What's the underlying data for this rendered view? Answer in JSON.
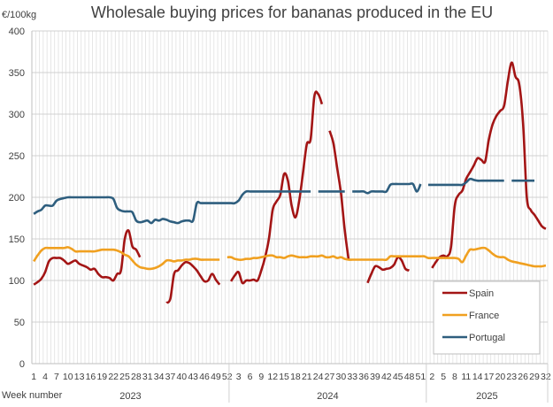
{
  "chart_data": {
    "type": "line",
    "title": "Wholesale buying prices for bananas produced in the EU",
    "ylabel": "€/100kg",
    "xlabel": "Week number",
    "ylim": [
      0,
      400
    ],
    "y_ticks": [
      0,
      50,
      100,
      150,
      200,
      250,
      300,
      350,
      400
    ],
    "grid": true,
    "legend_position": "bottom-right",
    "years": [
      {
        "label": "2023",
        "weeks": 52,
        "tick_labels": [
          1,
          4,
          7,
          10,
          13,
          16,
          19,
          22,
          25,
          28,
          31,
          34,
          37,
          40,
          43,
          46,
          49,
          52
        ]
      },
      {
        "label": "2024",
        "weeks": 52,
        "tick_labels": [
          3,
          6,
          9,
          12,
          15,
          18,
          21,
          24,
          27,
          30,
          33,
          36,
          39,
          42,
          45,
          48,
          51
        ]
      },
      {
        "label": "2025",
        "weeks": 32,
        "tick_labels": [
          2,
          5,
          8,
          11,
          14,
          17,
          20,
          23,
          26,
          29,
          32
        ]
      }
    ],
    "series": [
      {
        "name": "Spain",
        "color": "#A31515",
        "values": [
          95,
          98,
          102,
          110,
          123,
          127,
          127,
          127,
          124,
          120,
          122,
          124,
          120,
          118,
          116,
          113,
          114,
          108,
          104,
          104,
          103,
          100,
          108,
          112,
          150,
          160,
          141,
          137,
          128,
          null,
          null,
          null,
          null,
          null,
          null,
          73,
          78,
          108,
          112,
          118,
          122,
          121,
          117,
          112,
          105,
          99,
          100,
          108,
          101,
          95,
          null,
          null,
          99,
          106,
          110,
          97,
          100,
          100,
          101,
          100,
          112,
          128,
          150,
          185,
          195,
          203,
          228,
          220,
          190,
          176,
          196,
          230,
          264,
          270,
          322,
          324,
          312,
          null,
          280,
          265,
          235,
          205,
          160,
          126,
          null,
          null,
          null,
          null,
          97,
          108,
          117,
          116,
          113,
          114,
          115,
          119,
          128,
          124,
          114,
          112,
          null,
          null,
          null,
          null,
          null,
          115,
          122,
          128,
          130,
          129,
          140,
          190,
          203,
          208,
          222,
          230,
          238,
          247,
          245,
          243,
          270,
          288,
          298,
          304,
          310,
          340,
          362,
          345,
          336,
          290,
          200,
          185,
          179,
          172,
          165,
          162
        ]
      },
      {
        "name": "France",
        "color": "#F0A020",
        "values": [
          123,
          130,
          136,
          139,
          139,
          139,
          139,
          139,
          139,
          140,
          138,
          135,
          135,
          135,
          135,
          135,
          135,
          136,
          137,
          137,
          137,
          137,
          136,
          134,
          131,
          129,
          124,
          119,
          116,
          115,
          114,
          114,
          115,
          117,
          120,
          124,
          124,
          123,
          124,
          124,
          125,
          125,
          126,
          126,
          125,
          125,
          125,
          125,
          125,
          125,
          null,
          128,
          128,
          126,
          125,
          125,
          126,
          126,
          127,
          127,
          128,
          129,
          130,
          130,
          128,
          128,
          127,
          129,
          130,
          129,
          128,
          128,
          128,
          129,
          129,
          129,
          130,
          128,
          128,
          129,
          127,
          128,
          126,
          125,
          125,
          125,
          125,
          125,
          125,
          125,
          125,
          125,
          125,
          125,
          129,
          129,
          129,
          129,
          129,
          129,
          129,
          129,
          129,
          129,
          127,
          127,
          127,
          127,
          127,
          127,
          127,
          127,
          126,
          122,
          130,
          137,
          137,
          138,
          139,
          139,
          136,
          132,
          129,
          128,
          128,
          125,
          123,
          122,
          121,
          120,
          119,
          118,
          117,
          117,
          117,
          118
        ]
      },
      {
        "name": "Portugal",
        "color": "#2E5E7E",
        "values": [
          180,
          183,
          185,
          190,
          190,
          190,
          196,
          198,
          199,
          200,
          200,
          200,
          200,
          200,
          200,
          200,
          200,
          200,
          200,
          200,
          200,
          198,
          187,
          184,
          183,
          183,
          182,
          172,
          170,
          171,
          172,
          169,
          173,
          172,
          174,
          173,
          171,
          170,
          169,
          171,
          172,
          172,
          172,
          193,
          193,
          193,
          193,
          193,
          193,
          193,
          193,
          193,
          193,
          193,
          196,
          203,
          207,
          207,
          207,
          207,
          207,
          207,
          207,
          207,
          207,
          207,
          207,
          207,
          207,
          207,
          207,
          207,
          207,
          207,
          null,
          207,
          207,
          207,
          207,
          207,
          207,
          207,
          207,
          null,
          207,
          207,
          207,
          207,
          205,
          207,
          207,
          207,
          207,
          207,
          215,
          216,
          216,
          216,
          216,
          216,
          216,
          207,
          216,
          null,
          215,
          215,
          215,
          215,
          215,
          215,
          215,
          215,
          215,
          215,
          218,
          222,
          221,
          220,
          220,
          220,
          220,
          220,
          220,
          220,
          220,
          null,
          220,
          220,
          220,
          220,
          220,
          220,
          220,
          null,
          null,
          null
        ]
      }
    ]
  }
}
